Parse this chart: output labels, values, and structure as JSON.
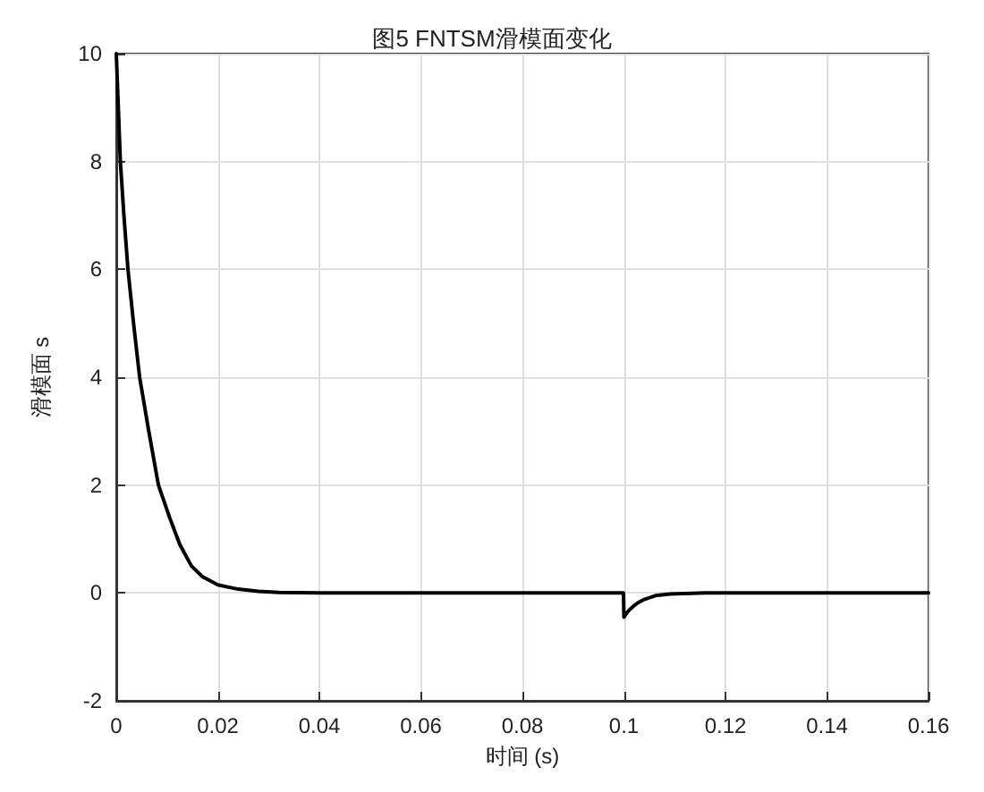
{
  "chart_data": {
    "type": "line",
    "title": "图5 FNTSM滑模面变化",
    "xlabel": "时间 (s)",
    "ylabel": "滑模面 s",
    "series": [
      {
        "color": "#000000",
        "x": [
          0,
          0.0004,
          0.0008,
          0.0015,
          0.0023,
          0.0034,
          0.0046,
          0.0064,
          0.0083,
          0.0105,
          0.0125,
          0.0148,
          0.017,
          0.02,
          0.024,
          0.028,
          0.032,
          0.04,
          0.06,
          0.08,
          0.0999,
          0.1,
          0.1005,
          0.101,
          0.1018,
          0.1028,
          0.104,
          0.1062,
          0.109,
          0.112,
          0.116,
          0.12,
          0.14,
          0.16
        ],
        "values": [
          10,
          9,
          8,
          7,
          6,
          5,
          4,
          3,
          2,
          1.4,
          0.9,
          0.5,
          0.3,
          0.15,
          0.07,
          0.03,
          0.01,
          0,
          0,
          0,
          0,
          -0.45,
          -0.38,
          -0.32,
          -0.25,
          -0.18,
          -0.12,
          -0.05,
          -0.02,
          -0.01,
          0,
          0,
          0,
          0
        ]
      }
    ],
    "xlim": [
      0,
      0.16
    ],
    "xticks": [
      0,
      0.02,
      0.04,
      0.06,
      0.08,
      0.1,
      0.12,
      0.14,
      0.16
    ],
    "ylim": [
      -2,
      10
    ],
    "yticks": [
      -2,
      0,
      2,
      4,
      6,
      8,
      10
    ],
    "grid": true,
    "marker": "none",
    "line_style": "solid"
  }
}
